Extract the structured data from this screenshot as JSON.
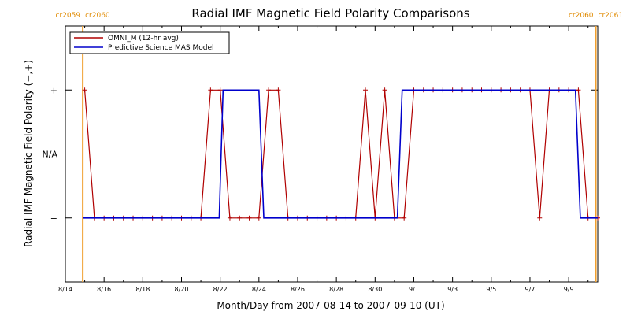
{
  "chart_data": {
    "type": "line",
    "title": "Radial IMF Magnetic Field Polarity Comparisons",
    "xlabel": "Month/Day from 2007-08-14 to 2007-09-10 (UT)",
    "ylabel": "Radial IMF Magnetic Field Polarity (−,+)",
    "xlim": [
      0,
      27.5
    ],
    "ylim": [
      -2,
      2
    ],
    "x_ticks": [
      {
        "x": 0,
        "label": "8/14"
      },
      {
        "x": 2,
        "label": "8/16"
      },
      {
        "x": 4,
        "label": "8/18"
      },
      {
        "x": 6,
        "label": "8/20"
      },
      {
        "x": 8,
        "label": "8/22"
      },
      {
        "x": 10,
        "label": "8/24"
      },
      {
        "x": 12,
        "label": "8/26"
      },
      {
        "x": 14,
        "label": "8/28"
      },
      {
        "x": 16,
        "label": "8/30"
      },
      {
        "x": 18,
        "label": "9/1"
      },
      {
        "x": 20,
        "label": "9/3"
      },
      {
        "x": 22,
        "label": "9/5"
      },
      {
        "x": 24,
        "label": "9/7"
      },
      {
        "x": 26,
        "label": "9/9"
      }
    ],
    "y_ticks": [
      {
        "y": 1,
        "label": "+"
      },
      {
        "y": 0,
        "label": "N/A"
      },
      {
        "y": -1,
        "label": "−"
      }
    ],
    "carrington_markers": [
      {
        "x": 0.9,
        "label_left": "cr2059",
        "label_right": "cr2060"
      },
      {
        "x": 27.4,
        "label_left": "cr2060",
        "label_right": "cr2061"
      }
    ],
    "legend": {
      "placement": "top-left",
      "entries": [
        {
          "label": "OMNI_M (12-hr avg)",
          "color": "#b00000"
        },
        {
          "label": "Predictive Science MAS Model",
          "color": "#0000cc"
        }
      ]
    },
    "series": [
      {
        "name": "OMNI_M (12-hr avg)",
        "color": "#b00000",
        "marker": "+",
        "x": [
          1.0,
          1.5,
          2.0,
          2.5,
          3.0,
          3.5,
          4.0,
          4.5,
          5.0,
          5.5,
          6.0,
          6.5,
          7.0,
          7.5,
          8.0,
          8.5,
          9.0,
          9.5,
          10.0,
          10.5,
          11.0,
          11.5,
          12.0,
          12.5,
          13.0,
          13.5,
          14.0,
          14.5,
          15.0,
          15.5,
          16.0,
          16.5,
          17.0,
          17.5,
          18.0,
          18.5,
          19.0,
          19.5,
          20.0,
          20.5,
          21.0,
          21.5,
          22.0,
          22.5,
          23.0,
          23.5,
          24.0,
          24.5,
          25.0,
          25.5,
          26.0,
          26.5,
          27.0,
          27.5
        ],
        "y": [
          1,
          -1,
          -1,
          -1,
          -1,
          -1,
          -1,
          -1,
          -1,
          -1,
          -1,
          -1,
          -1,
          1,
          1,
          -1,
          -1,
          -1,
          -1,
          1,
          1,
          -1,
          -1,
          -1,
          -1,
          -1,
          -1,
          -1,
          -1,
          1,
          -1,
          1,
          -1,
          -1,
          1,
          1,
          1,
          1,
          1,
          1,
          1,
          1,
          1,
          1,
          1,
          1,
          1,
          -1,
          1,
          1,
          1,
          1,
          -1,
          -1
        ]
      },
      {
        "name": "Predictive Science MAS Model",
        "color": "#0000cc",
        "marker": "none",
        "x": [
          0.9,
          7.95,
          8.15,
          10.0,
          10.25,
          17.15,
          17.4,
          26.35,
          26.6,
          27.5
        ],
        "y": [
          -1,
          -1,
          1,
          1,
          -1,
          -1,
          1,
          1,
          -1,
          -1
        ]
      }
    ]
  }
}
